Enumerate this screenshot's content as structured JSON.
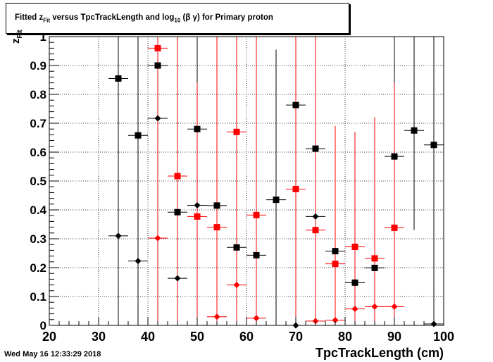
{
  "title": {
    "prefix": "Fitted  z",
    "sub": "Fit",
    "middle": "  versus TpcTrackLength and log",
    "sub2": "10",
    "suffix": " (β γ) for Primary proton"
  },
  "timestamp": "Wed May 16 12:33:29 2018",
  "y_axis_title": {
    "main": "z",
    "sub": "Fit"
  },
  "chart_data": {
    "type": "scatter",
    "xlabel": "TpcTrackLength (cm)",
    "xlim": [
      20,
      100
    ],
    "ylim": [
      0,
      1
    ],
    "x_ticks": [
      20,
      30,
      40,
      50,
      60,
      70,
      80,
      90,
      100
    ],
    "y_ticks": [
      0,
      0.1,
      0.2,
      0.3,
      0.4,
      0.5,
      0.6,
      0.7,
      0.8,
      0.9,
      1
    ],
    "y_tick_labels": [
      "0",
      "0.1",
      "0.2",
      "0.3",
      "0.4",
      "0.5",
      "0.6",
      "0.7",
      "0.8",
      "0.9",
      "1"
    ],
    "grid": true,
    "series": [
      {
        "marker": "square",
        "color": "#000000",
        "points": [
          {
            "x": 34,
            "y": 0.855,
            "ylo": 0.0,
            "yhi": 1.0
          },
          {
            "x": 38,
            "y": 0.658,
            "ylo": 0.0,
            "yhi": 1.0
          },
          {
            "x": 42,
            "y": 0.9,
            "ylo": 0.0,
            "yhi": 1.0
          },
          {
            "x": 46,
            "y": 0.392,
            "ylo": 0.0,
            "yhi": 1.0
          },
          {
            "x": 50,
            "y": 0.68,
            "ylo": 0.0,
            "yhi": 1.0
          },
          {
            "x": 54,
            "y": 0.415,
            "ylo": 0.0,
            "yhi": 1.0
          },
          {
            "x": 58,
            "y": 0.27,
            "ylo": 0.0,
            "yhi": 1.0
          },
          {
            "x": 62,
            "y": 0.243,
            "ylo": 0.0,
            "yhi": 1.0
          },
          {
            "x": 66,
            "y": 0.435,
            "ylo": 0.0,
            "yhi": 0.955
          },
          {
            "x": 70,
            "y": 0.763,
            "ylo": 0.0,
            "yhi": 1.0
          },
          {
            "x": 74,
            "y": 0.612,
            "ylo": 0.0,
            "yhi": 0.985
          },
          {
            "x": 78,
            "y": 0.257,
            "ylo": 0.0,
            "yhi": 0.69
          },
          {
            "x": 82,
            "y": 0.148,
            "ylo": 0.0,
            "yhi": 0.44
          },
          {
            "x": 86,
            "y": 0.199,
            "ylo": 0.0,
            "yhi": 0.48
          },
          {
            "x": 90,
            "y": 0.585,
            "ylo": 0.0,
            "yhi": 1.0
          },
          {
            "x": 94,
            "y": 0.675,
            "ylo": 0.33,
            "yhi": 1.0
          },
          {
            "x": 98,
            "y": 0.625,
            "ylo": 0.0,
            "yhi": 1.0
          }
        ]
      },
      {
        "marker": "diamond",
        "color": "#000000",
        "points": [
          {
            "x": 34,
            "y": 0.31,
            "ylo": 0.0,
            "yhi": 1.0
          },
          {
            "x": 38,
            "y": 0.223,
            "ylo": 0.0,
            "yhi": 1.0
          },
          {
            "x": 42,
            "y": 0.717,
            "ylo": 0.0,
            "yhi": 1.0
          },
          {
            "x": 46,
            "y": 0.163,
            "ylo": 0.0,
            "yhi": 1.0
          },
          {
            "x": 50,
            "y": 0.416,
            "ylo": 0.0,
            "yhi": 1.0
          },
          {
            "x": 70,
            "y": 0.0,
            "ylo": 0.0,
            "yhi": 0.0
          },
          {
            "x": 74,
            "y": 0.377,
            "ylo": 0.0,
            "yhi": 1.0
          },
          {
            "x": 98,
            "y": 0.005,
            "ylo": 0.0,
            "yhi": 0.0
          }
        ]
      },
      {
        "marker": "square",
        "color": "#ff0000",
        "points": [
          {
            "x": 42,
            "y": 0.96,
            "ylo": 0.0,
            "yhi": 1.0
          },
          {
            "x": 46,
            "y": 0.517,
            "ylo": 0.0,
            "yhi": 1.0
          },
          {
            "x": 50,
            "y": 0.377,
            "ylo": 0.0,
            "yhi": 0.84
          },
          {
            "x": 54,
            "y": 0.34,
            "ylo": 0.0,
            "yhi": 1.0
          },
          {
            "x": 58,
            "y": 0.67,
            "ylo": 0.0,
            "yhi": 1.0
          },
          {
            "x": 62,
            "y": 0.382,
            "ylo": 0.0,
            "yhi": 1.0
          },
          {
            "x": 70,
            "y": 0.472,
            "ylo": 0.0,
            "yhi": 1.0
          },
          {
            "x": 74,
            "y": 0.33,
            "ylo": 0.0,
            "yhi": 1.0
          },
          {
            "x": 78,
            "y": 0.213,
            "ylo": 0.0,
            "yhi": 0.69
          },
          {
            "x": 82,
            "y": 0.272,
            "ylo": 0.0,
            "yhi": 0.67
          },
          {
            "x": 86,
            "y": 0.232,
            "ylo": 0.0,
            "yhi": 0.72
          },
          {
            "x": 90,
            "y": 0.338,
            "ylo": 0.0,
            "yhi": 0.84
          }
        ]
      },
      {
        "marker": "diamond",
        "color": "#ff0000",
        "points": [
          {
            "x": 42,
            "y": 0.302,
            "ylo": 0.0,
            "yhi": 1.0
          },
          {
            "x": 54,
            "y": 0.03,
            "ylo": 0.0,
            "yhi": 1.0
          },
          {
            "x": 58,
            "y": 0.14,
            "ylo": 0.0,
            "yhi": 1.0
          },
          {
            "x": 62,
            "y": 0.025,
            "ylo": 0.0,
            "yhi": 1.0
          },
          {
            "x": 74,
            "y": 0.015,
            "ylo": 0.0,
            "yhi": 1.0
          },
          {
            "x": 78,
            "y": 0.018,
            "ylo": 0.0,
            "yhi": 0.69
          },
          {
            "x": 82,
            "y": 0.057,
            "ylo": 0.0,
            "yhi": 0.67
          },
          {
            "x": 86,
            "y": 0.065,
            "ylo": 0.0,
            "yhi": 0.72
          },
          {
            "x": 90,
            "y": 0.065,
            "ylo": 0.0,
            "yhi": 0.84
          }
        ]
      }
    ]
  }
}
